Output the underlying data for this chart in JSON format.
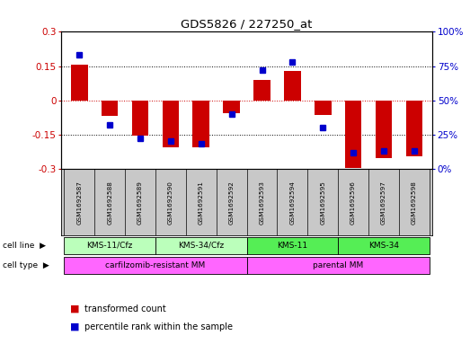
{
  "title": "GDS5826 / 227250_at",
  "samples": [
    "GSM1692587",
    "GSM1692588",
    "GSM1692589",
    "GSM1692590",
    "GSM1692591",
    "GSM1692592",
    "GSM1692593",
    "GSM1692594",
    "GSM1692595",
    "GSM1692596",
    "GSM1692597",
    "GSM1692598"
  ],
  "transformed_count": [
    0.155,
    -0.07,
    -0.155,
    -0.205,
    -0.205,
    -0.055,
    0.09,
    0.13,
    -0.065,
    -0.295,
    -0.255,
    -0.245
  ],
  "percentile_rank": [
    83,
    32,
    22,
    20,
    18,
    40,
    72,
    78,
    30,
    12,
    13,
    13
  ],
  "ylim": [
    -0.3,
    0.3
  ],
  "y2lim": [
    0,
    100
  ],
  "yticks": [
    -0.3,
    -0.15,
    0,
    0.15,
    0.3
  ],
  "y2ticks": [
    0,
    25,
    50,
    75,
    100
  ],
  "bar_color": "#cc0000",
  "dot_color": "#0000cc",
  "cell_line_groups": [
    {
      "label": "KMS-11/Cfz",
      "start": 0,
      "end": 3,
      "color": "#bbffbb"
    },
    {
      "label": "KMS-34/Cfz",
      "start": 3,
      "end": 6,
      "color": "#bbffbb"
    },
    {
      "label": "KMS-11",
      "start": 6,
      "end": 9,
      "color": "#55ee55"
    },
    {
      "label": "KMS-34",
      "start": 9,
      "end": 12,
      "color": "#55ee55"
    }
  ],
  "cell_type_groups": [
    {
      "label": "carfilzomib-resistant MM",
      "start": 0,
      "end": 6,
      "color": "#ff66ff"
    },
    {
      "label": "parental MM",
      "start": 6,
      "end": 12,
      "color": "#ff66ff"
    }
  ],
  "background_color": "#ffffff",
  "bar_color_hex": "#cc0000",
  "dot_color_hex": "#0000cc",
  "zero_line_color": "#cc0000",
  "label_bg": "#c8c8c8"
}
